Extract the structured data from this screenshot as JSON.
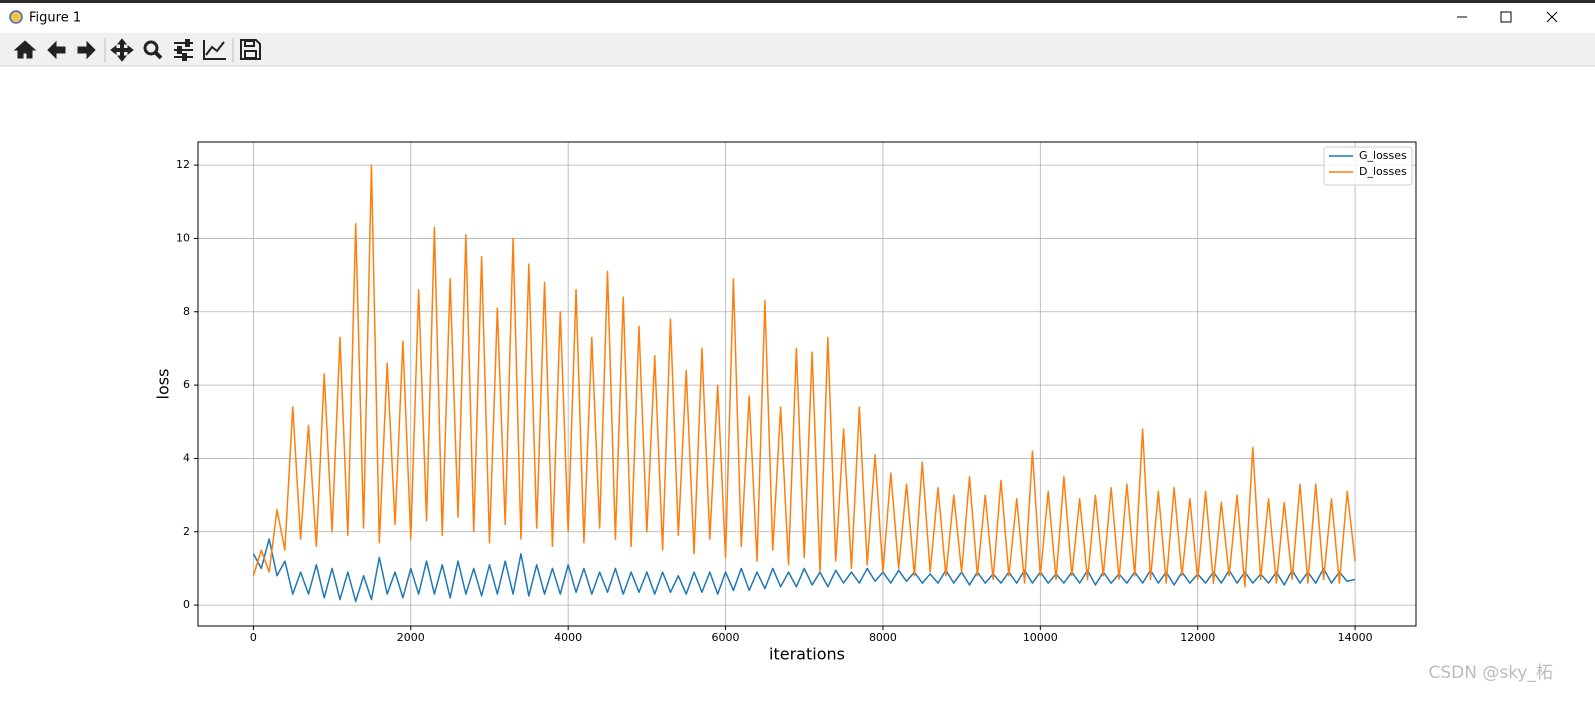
{
  "window": {
    "title": "Figure 1"
  },
  "watermark": "CSDN @sky_柘",
  "chart_data": {
    "type": "line",
    "xlabel": "iterations",
    "ylabel": "loss",
    "x": [
      0,
      100,
      200,
      300,
      400,
      500,
      600,
      700,
      800,
      900,
      1000,
      1100,
      1200,
      1300,
      1400,
      1500,
      1600,
      1700,
      1800,
      1900,
      2000,
      2100,
      2200,
      2300,
      2400,
      2500,
      2600,
      2700,
      2800,
      2900,
      3000,
      3100,
      3200,
      3300,
      3400,
      3500,
      3600,
      3700,
      3800,
      3900,
      4000,
      4100,
      4200,
      4300,
      4400,
      4500,
      4600,
      4700,
      4800,
      4900,
      5000,
      5100,
      5200,
      5300,
      5400,
      5500,
      5600,
      5700,
      5800,
      5900,
      6000,
      6100,
      6200,
      6300,
      6400,
      6500,
      6600,
      6700,
      6800,
      6900,
      7000,
      7100,
      7200,
      7300,
      7400,
      7500,
      7600,
      7700,
      7800,
      7900,
      8000,
      8100,
      8200,
      8300,
      8400,
      8500,
      8600,
      8700,
      8800,
      8900,
      9000,
      9100,
      9200,
      9300,
      9400,
      9500,
      9600,
      9700,
      9800,
      9900,
      10000,
      10100,
      10200,
      10300,
      10400,
      10500,
      10600,
      10700,
      10800,
      10900,
      11000,
      11100,
      11200,
      11300,
      11400,
      11500,
      11600,
      11700,
      11800,
      11900,
      12000,
      12100,
      12200,
      12300,
      12400,
      12500,
      12600,
      12700,
      12800,
      12900,
      13000,
      13100,
      13200,
      13300,
      13400,
      13500,
      13600,
      13700,
      13800,
      13900,
      14000
    ],
    "series": [
      {
        "name": "G_losses",
        "color": "#1f77b4",
        "values": [
          1.4,
          1.0,
          1.8,
          0.8,
          1.2,
          0.3,
          0.9,
          0.3,
          1.1,
          0.2,
          1.0,
          0.15,
          0.9,
          0.1,
          0.8,
          0.15,
          1.3,
          0.3,
          0.9,
          0.2,
          1.0,
          0.3,
          1.2,
          0.3,
          1.1,
          0.2,
          1.2,
          0.3,
          1.0,
          0.25,
          1.1,
          0.3,
          1.2,
          0.3,
          1.4,
          0.25,
          1.1,
          0.3,
          1.0,
          0.3,
          1.1,
          0.35,
          1.0,
          0.3,
          0.9,
          0.35,
          1.0,
          0.3,
          0.9,
          0.35,
          0.9,
          0.3,
          0.9,
          0.35,
          0.8,
          0.3,
          0.9,
          0.35,
          0.9,
          0.3,
          0.9,
          0.4,
          1.0,
          0.4,
          0.9,
          0.45,
          1.0,
          0.5,
          0.9,
          0.5,
          1.0,
          0.55,
          0.9,
          0.5,
          0.95,
          0.6,
          0.9,
          0.6,
          1.0,
          0.65,
          0.9,
          0.6,
          0.95,
          0.65,
          0.9,
          0.6,
          0.85,
          0.6,
          0.95,
          0.6,
          0.9,
          0.55,
          0.9,
          0.6,
          0.85,
          0.6,
          0.9,
          0.6,
          0.95,
          0.6,
          0.9,
          0.6,
          0.85,
          0.6,
          0.9,
          0.6,
          0.95,
          0.55,
          0.9,
          0.6,
          0.85,
          0.6,
          0.9,
          0.6,
          0.95,
          0.6,
          0.9,
          0.55,
          0.9,
          0.6,
          0.85,
          0.6,
          0.9,
          0.6,
          0.95,
          0.6,
          0.9,
          0.6,
          0.85,
          0.6,
          0.9,
          0.55,
          0.95,
          0.6,
          0.9,
          0.6,
          1.0,
          0.6,
          0.9,
          0.65,
          0.7
        ]
      },
      {
        "name": "D_losses",
        "color": "#ff7f0e",
        "values": [
          0.8,
          1.5,
          0.9,
          2.6,
          1.5,
          5.4,
          1.8,
          4.9,
          1.6,
          6.3,
          2.0,
          7.3,
          1.9,
          10.4,
          2.1,
          12.0,
          1.7,
          6.6,
          2.2,
          7.2,
          1.8,
          8.6,
          2.3,
          10.3,
          1.9,
          8.9,
          2.4,
          10.1,
          2.0,
          9.5,
          1.7,
          8.1,
          2.2,
          10.0,
          1.8,
          9.3,
          2.1,
          8.8,
          1.6,
          8.0,
          2.0,
          8.6,
          1.7,
          7.3,
          2.1,
          9.1,
          1.8,
          8.4,
          1.6,
          7.6,
          2.0,
          6.8,
          1.5,
          7.8,
          1.9,
          6.4,
          1.4,
          7.0,
          1.8,
          6.0,
          1.3,
          8.9,
          1.6,
          5.7,
          1.2,
          8.3,
          1.5,
          5.4,
          1.1,
          7.0,
          1.3,
          6.9,
          0.9,
          7.3,
          1.2,
          4.8,
          1.0,
          5.4,
          1.1,
          4.1,
          0.9,
          3.6,
          1.0,
          3.3,
          0.8,
          3.9,
          0.9,
          3.2,
          0.8,
          3.0,
          0.9,
          3.5,
          0.8,
          3.0,
          0.7,
          3.4,
          0.8,
          2.9,
          0.6,
          4.2,
          0.8,
          3.1,
          0.7,
          3.5,
          0.8,
          2.9,
          0.7,
          3.0,
          0.8,
          3.2,
          0.7,
          3.3,
          0.8,
          4.8,
          0.7,
          3.1,
          0.6,
          3.2,
          0.8,
          2.9,
          0.7,
          3.1,
          0.6,
          2.8,
          0.8,
          3.0,
          0.5,
          4.3,
          0.7,
          2.9,
          0.6,
          2.8,
          0.7,
          3.3,
          0.6,
          3.3,
          0.7,
          2.9,
          0.6,
          3.1,
          1.2
        ]
      }
    ],
    "xlim": [
      -704,
      14774
    ],
    "xticks": [
      0,
      2000,
      4000,
      6000,
      8000,
      10000,
      12000,
      14000
    ],
    "ylim": [
      -0.57,
      12.63
    ],
    "yticks": [
      0,
      2,
      4,
      6,
      8,
      10,
      12
    ],
    "grid": true,
    "legend": "upper right"
  }
}
